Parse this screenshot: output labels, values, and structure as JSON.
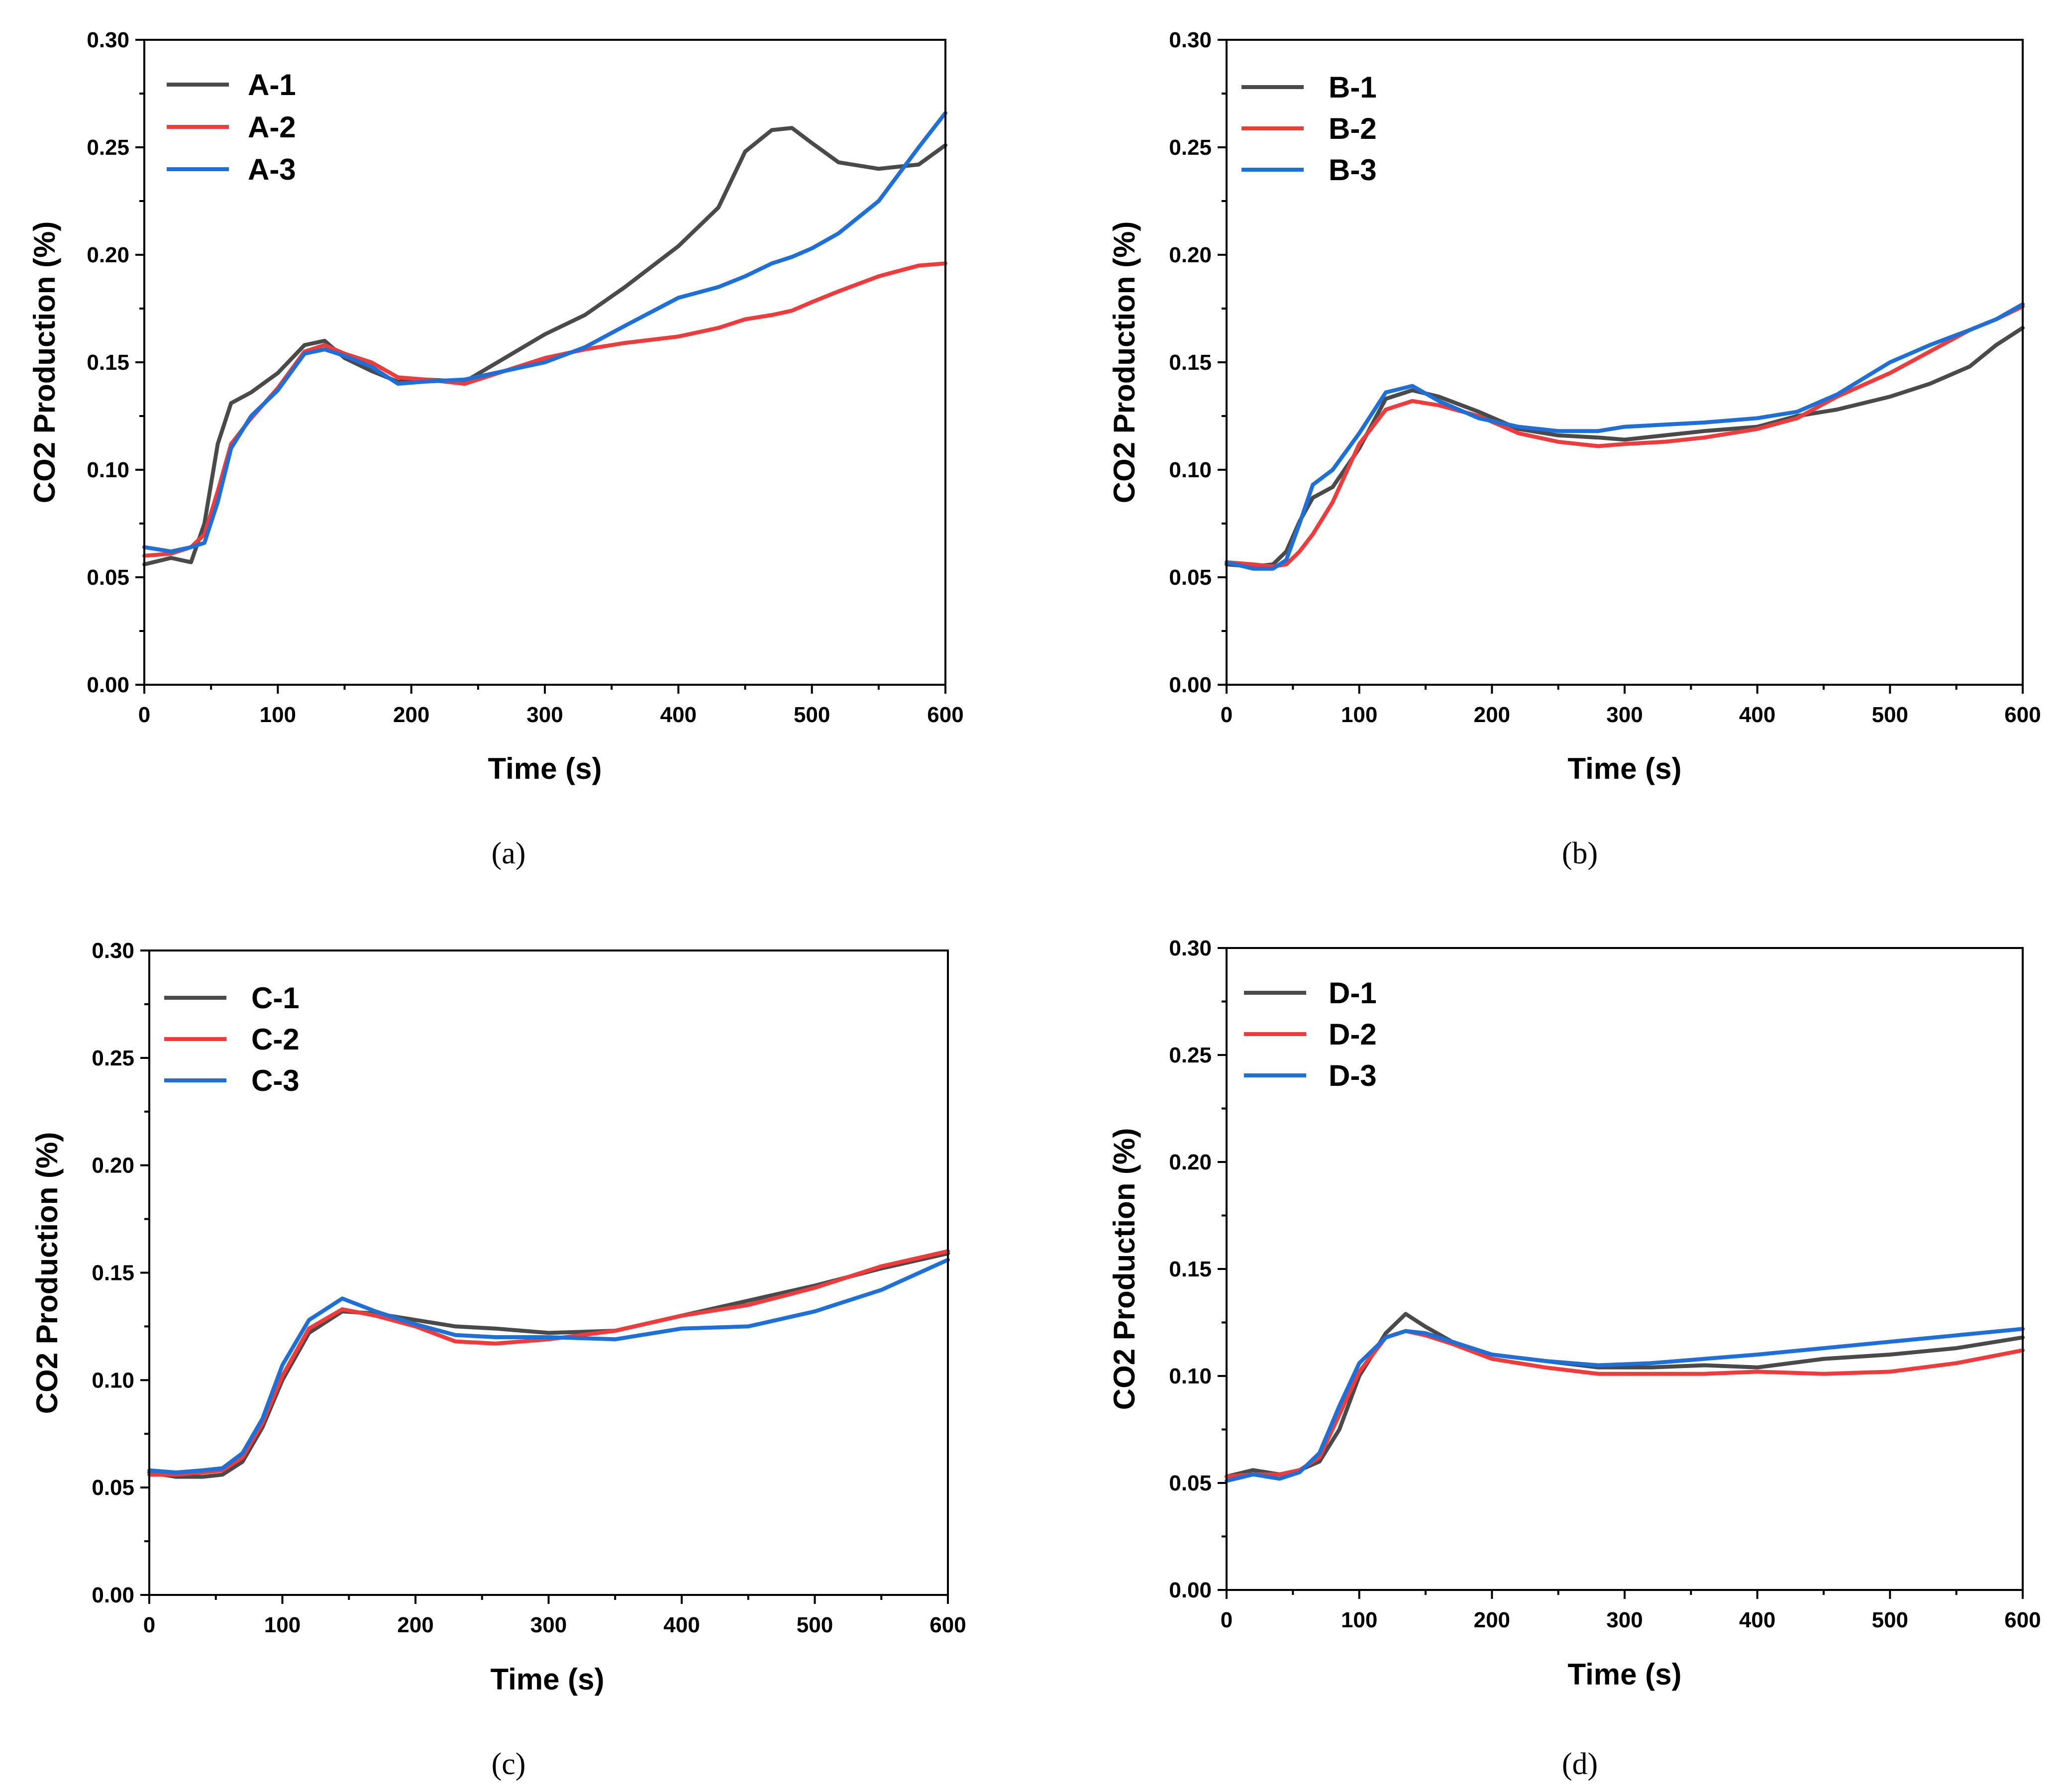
{
  "colors": {
    "series1": "#4a4a4a",
    "series2": "#ef3b3b",
    "series3": "#1f6fd8"
  },
  "chart_data": [
    {
      "type": "line",
      "caption": "(a)",
      "xlabel": "Time (s)",
      "ylabel": "CO2 Production (%)",
      "xlim": [
        0,
        600
      ],
      "ylim": [
        0,
        0.3
      ],
      "xticks": [
        "0",
        "100",
        "200",
        "300",
        "400",
        "500",
        "600"
      ],
      "yticks": [
        "0.00",
        "0.05",
        "0.10",
        "0.15",
        "0.20",
        "0.25",
        "0.30"
      ],
      "legend": "top-left",
      "x": [
        0,
        20,
        35,
        45,
        55,
        65,
        80,
        100,
        120,
        135,
        150,
        170,
        190,
        210,
        240,
        270,
        300,
        330,
        360,
        400,
        430,
        450,
        470,
        485,
        500,
        520,
        550,
        580,
        600
      ],
      "series": [
        {
          "name": "A-1",
          "values": [
            0.056,
            0.059,
            0.057,
            0.075,
            0.112,
            0.131,
            0.136,
            0.145,
            0.158,
            0.16,
            0.152,
            0.146,
            0.141,
            0.142,
            0.141,
            0.152,
            0.163,
            0.172,
            0.185,
            0.204,
            0.222,
            0.248,
            0.258,
            0.259,
            0.252,
            0.243,
            0.24,
            0.242,
            0.251
          ]
        },
        {
          "name": "A-2",
          "values": [
            0.06,
            0.061,
            0.064,
            0.07,
            0.09,
            0.112,
            0.124,
            0.138,
            0.155,
            0.158,
            0.154,
            0.15,
            0.143,
            0.142,
            0.14,
            0.146,
            0.152,
            0.156,
            0.159,
            0.162,
            0.166,
            0.17,
            0.172,
            0.174,
            0.178,
            0.183,
            0.19,
            0.195,
            0.196
          ]
        },
        {
          "name": "A-3",
          "values": [
            0.064,
            0.062,
            0.064,
            0.066,
            0.085,
            0.11,
            0.125,
            0.137,
            0.154,
            0.156,
            0.153,
            0.148,
            0.14,
            0.141,
            0.142,
            0.146,
            0.15,
            0.157,
            0.167,
            0.18,
            0.185,
            0.19,
            0.196,
            0.199,
            0.203,
            0.21,
            0.225,
            0.25,
            0.266
          ]
        }
      ]
    },
    {
      "type": "line",
      "caption": "(b)",
      "xlabel": "Time (s)",
      "ylabel": "CO2 Production (%)",
      "xlim": [
        0,
        600
      ],
      "ylim": [
        0,
        0.3
      ],
      "xticks": [
        "0",
        "100",
        "200",
        "300",
        "400",
        "500",
        "600"
      ],
      "yticks": [
        "0.00",
        "0.05",
        "0.10",
        "0.15",
        "0.20",
        "0.25",
        "0.30"
      ],
      "legend": "top-left",
      "x": [
        0,
        20,
        35,
        45,
        55,
        65,
        80,
        100,
        120,
        140,
        160,
        190,
        220,
        250,
        280,
        300,
        330,
        360,
        400,
        430,
        460,
        500,
        530,
        560,
        580,
        600
      ],
      "series": [
        {
          "name": "B-1",
          "values": [
            0.056,
            0.055,
            0.056,
            0.062,
            0.076,
            0.087,
            0.092,
            0.11,
            0.133,
            0.137,
            0.134,
            0.127,
            0.119,
            0.116,
            0.115,
            0.114,
            0.116,
            0.118,
            0.12,
            0.125,
            0.128,
            0.134,
            0.14,
            0.148,
            0.158,
            0.166
          ]
        },
        {
          "name": "B-2",
          "values": [
            0.057,
            0.056,
            0.055,
            0.056,
            0.062,
            0.07,
            0.085,
            0.112,
            0.128,
            0.132,
            0.13,
            0.125,
            0.117,
            0.113,
            0.111,
            0.112,
            0.113,
            0.115,
            0.119,
            0.124,
            0.134,
            0.145,
            0.155,
            0.165,
            0.17,
            0.176
          ]
        },
        {
          "name": "B-3",
          "values": [
            0.057,
            0.054,
            0.054,
            0.058,
            0.075,
            0.093,
            0.1,
            0.117,
            0.136,
            0.139,
            0.132,
            0.124,
            0.12,
            0.118,
            0.118,
            0.12,
            0.121,
            0.122,
            0.124,
            0.127,
            0.135,
            0.15,
            0.158,
            0.165,
            0.17,
            0.177
          ]
        }
      ]
    },
    {
      "type": "line",
      "caption": "(c)",
      "xlabel": "Time (s)",
      "ylabel": "CO2 Production (%)",
      "xlim": [
        0,
        600
      ],
      "ylim": [
        0,
        0.3
      ],
      "xticks": [
        "0",
        "100",
        "200",
        "300",
        "400",
        "500",
        "600"
      ],
      "yticks": [
        "0.00",
        "0.05",
        "0.10",
        "0.15",
        "0.20",
        "0.25",
        "0.30"
      ],
      "legend": "top-left",
      "x": [
        0,
        20,
        40,
        55,
        70,
        85,
        100,
        120,
        145,
        170,
        200,
        230,
        260,
        300,
        350,
        400,
        450,
        500,
        550,
        600
      ],
      "series": [
        {
          "name": "C-1",
          "values": [
            0.057,
            0.055,
            0.055,
            0.056,
            0.062,
            0.078,
            0.1,
            0.122,
            0.132,
            0.131,
            0.128,
            0.125,
            0.124,
            0.122,
            0.123,
            0.13,
            0.137,
            0.144,
            0.152,
            0.159
          ]
        },
        {
          "name": "C-2",
          "values": [
            0.056,
            0.056,
            0.057,
            0.058,
            0.064,
            0.08,
            0.102,
            0.124,
            0.133,
            0.13,
            0.125,
            0.118,
            0.117,
            0.119,
            0.123,
            0.13,
            0.135,
            0.143,
            0.153,
            0.16
          ]
        },
        {
          "name": "C-3",
          "values": [
            0.058,
            0.057,
            0.058,
            0.059,
            0.066,
            0.082,
            0.107,
            0.128,
            0.138,
            0.132,
            0.126,
            0.121,
            0.12,
            0.12,
            0.119,
            0.124,
            0.125,
            0.132,
            0.142,
            0.156
          ]
        }
      ]
    },
    {
      "type": "line",
      "caption": "(d)",
      "xlabel": "Time (s)",
      "ylabel": "CO2 Production (%)",
      "xlim": [
        0,
        600
      ],
      "ylim": [
        0,
        0.3
      ],
      "xticks": [
        "0",
        "100",
        "200",
        "300",
        "400",
        "500",
        "600"
      ],
      "yticks": [
        "0.00",
        "0.05",
        "0.10",
        "0.15",
        "0.20",
        "0.25",
        "0.30"
      ],
      "legend": "top-left",
      "x": [
        0,
        20,
        40,
        55,
        70,
        85,
        100,
        120,
        135,
        150,
        170,
        200,
        240,
        280,
        320,
        360,
        400,
        450,
        500,
        550,
        600
      ],
      "series": [
        {
          "name": "D-1",
          "values": [
            0.053,
            0.056,
            0.054,
            0.056,
            0.06,
            0.075,
            0.1,
            0.12,
            0.129,
            0.123,
            0.116,
            0.11,
            0.107,
            0.104,
            0.104,
            0.105,
            0.104,
            0.108,
            0.11,
            0.113,
            0.118
          ]
        },
        {
          "name": "D-2",
          "values": [
            0.053,
            0.054,
            0.054,
            0.056,
            0.062,
            0.082,
            0.102,
            0.118,
            0.121,
            0.119,
            0.115,
            0.108,
            0.104,
            0.101,
            0.101,
            0.101,
            0.102,
            0.101,
            0.102,
            0.106,
            0.112
          ]
        },
        {
          "name": "D-3",
          "values": [
            0.051,
            0.054,
            0.052,
            0.055,
            0.064,
            0.086,
            0.106,
            0.118,
            0.121,
            0.12,
            0.116,
            0.11,
            0.107,
            0.105,
            0.106,
            0.108,
            0.11,
            0.113,
            0.116,
            0.119,
            0.122
          ]
        }
      ]
    }
  ]
}
